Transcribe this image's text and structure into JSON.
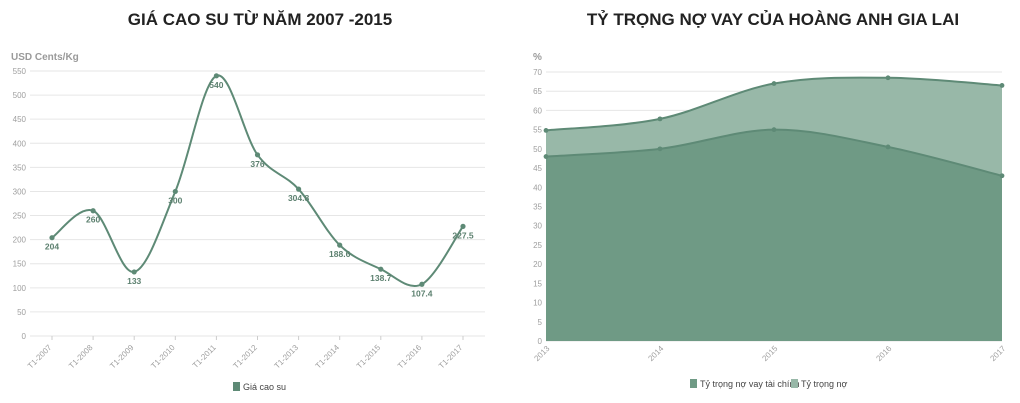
{
  "chart_data": [
    {
      "type": "line",
      "title": "GIÁ CAO SU TỪ NĂM 2007 -2015",
      "ylabel": "USD Cents/Kg",
      "xlabel": "",
      "ylim": [
        0,
        550
      ],
      "yticks": [
        0,
        50,
        100,
        150,
        200,
        250,
        300,
        350,
        400,
        450,
        500,
        550
      ],
      "categories": [
        "T1-2007",
        "T1-2008",
        "T1-2009",
        "T1-2010",
        "T1-2011",
        "T1-2012",
        "T1-2013",
        "T1-2014",
        "T1-2015",
        "T1-2016",
        "T1-2017"
      ],
      "series": [
        {
          "name": "Giá cao su",
          "values": [
            204,
            260,
            133,
            300,
            540,
            376,
            304.8,
            188.6,
            138.7,
            107.4,
            227.5
          ]
        }
      ],
      "data_labels": [
        "204",
        "260",
        "133",
        "300",
        "540",
        "376",
        "304.8",
        "188.6",
        "138.7",
        "107.4",
        "227.5"
      ],
      "grid": true,
      "legend_position": "bottom",
      "color": "#5e8a76"
    },
    {
      "type": "area",
      "title": "TỶ TRỌNG NỢ VAY CỦA HOÀNG ANH GIA LAI",
      "ylabel": "%",
      "xlabel": "",
      "ylim": [
        0,
        70
      ],
      "yticks": [
        0,
        5,
        10,
        15,
        20,
        25,
        30,
        35,
        40,
        45,
        50,
        55,
        60,
        65,
        70
      ],
      "categories": [
        "2013",
        "2014",
        "2015",
        "2016",
        "2017"
      ],
      "series": [
        {
          "name": "Tỷ trọng nợ vay tài chính",
          "values": [
            48,
            50,
            55,
            50.5,
            43
          ],
          "color": "#6f9a85"
        },
        {
          "name": "Tỷ trọng nợ",
          "values": [
            54.8,
            57.8,
            67,
            68.5,
            66.5
          ],
          "color": "#98b8a8"
        }
      ],
      "grid": true,
      "legend_position": "bottom"
    }
  ]
}
